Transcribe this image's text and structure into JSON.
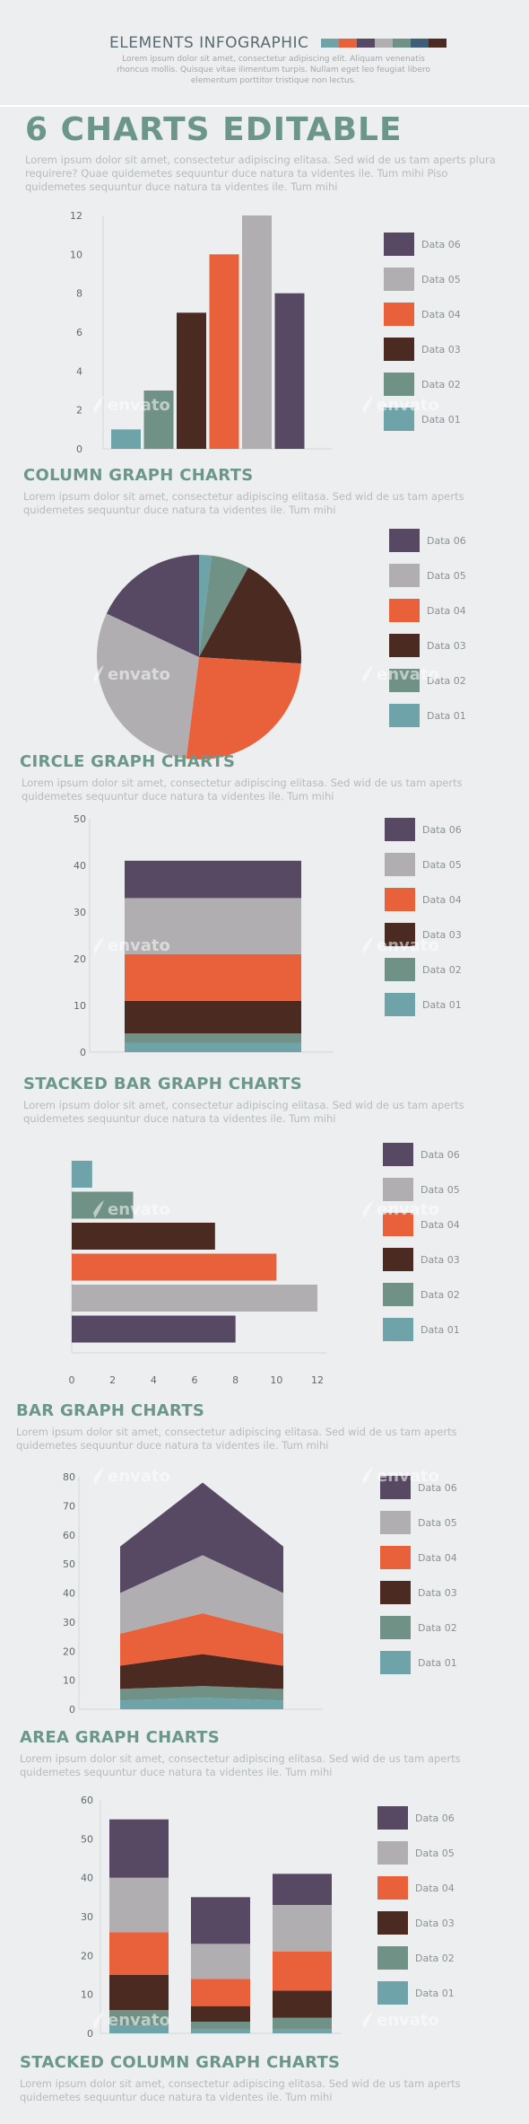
{
  "header": {
    "title": "ELEMENTS INFOGRAPHIC",
    "subtitle": "Lorem ipsum dolor sit amet, consectetur adipiscing elit. Aliquam venenatis rhoncus mollis. Quisque vitae ilimentum turpis. Nullam eget leo feugiat libero elementum porttitor tristique non lectus.",
    "strip_colors": [
      "#6ea3a9",
      "#e8613a",
      "#574963",
      "#b0aeb0",
      "#6f9186",
      "#3e5f7a",
      "#4b2a22"
    ]
  },
  "main": {
    "title": "6 CHARTS EDITABLE",
    "intro": "Lorem ipsum dolor sit amet, consectetur adipiscing elitasa. Sed wid de us tam aperts plura requirere? Quae quidemetes sequuntur duce natura ta videntes ile. Tum mihi Piso quidemetes sequuntur duce natura ta videntes ile. Tum mihi"
  },
  "watermark": "envato",
  "colors": {
    "Data 06": "#574963",
    "Data 05": "#b0aeb0",
    "Data 04": "#e8613a",
    "Data 03": "#4b2a22",
    "Data 02": "#6f9186",
    "Data 01": "#6ea3a9"
  },
  "legend": [
    "Data 06",
    "Data 05",
    "Data 04",
    "Data 03",
    "Data 02",
    "Data 01"
  ],
  "sections": [
    {
      "title": "COLUMN GRAPH CHARTS",
      "desc": "Lorem ipsum dolor sit amet, consectetur adipiscing elitasa. Sed wid de us tam aperts quidemetes sequuntur duce natura ta videntes ile. Tum mihi"
    },
    {
      "title": "CIRCLE GRAPH CHARTS",
      "desc": "Lorem ipsum dolor sit amet, consectetur adipiscing elitasa. Sed wid de us tam aperts quidemetes sequuntur duce natura ta videntes ile. Tum mihi"
    },
    {
      "title": "STACKED BAR GRAPH CHARTS",
      "desc": "Lorem ipsum dolor sit amet, consectetur adipiscing elitasa. Sed wid de us tam aperts quidemetes sequuntur duce natura ta videntes ile. Tum mihi"
    },
    {
      "title": "BAR GRAPH CHARTS",
      "desc": "Lorem ipsum dolor sit amet, consectetur adipiscing elitasa. Sed wid de us tam aperts quidemetes sequuntur duce natura ta videntes ile. Tum mihi"
    },
    {
      "title": "AREA GRAPH CHARTS",
      "desc": "Lorem ipsum dolor sit amet, consectetur adipiscing elitasa. Sed wid de us tam aperts quidemetes sequuntur duce natura ta videntes ile. Tum mihi"
    },
    {
      "title": "STACKED COLUMN GRAPH CHARTS",
      "desc": "Lorem ipsum dolor sit amet, consectetur adipiscing elitasa. Sed wid de us tam aperts quidemetes sequuntur duce natura ta videntes ile. Tum mihi"
    }
  ],
  "chart_data": [
    {
      "type": "bar",
      "categories": [
        "Data 01",
        "Data 02",
        "Data 03",
        "Data 04",
        "Data 05",
        "Data 06"
      ],
      "values": [
        1,
        3,
        7,
        10,
        12,
        8
      ],
      "ylim": [
        0,
        12
      ],
      "yticks": [
        0,
        2,
        4,
        6,
        8,
        10,
        12
      ],
      "grid": false,
      "legend": "right"
    },
    {
      "type": "pie",
      "categories": [
        "Data 01",
        "Data 02",
        "Data 03",
        "Data 04",
        "Data 05",
        "Data 06"
      ],
      "values": [
        2,
        6,
        18,
        26,
        30,
        18
      ],
      "legend": "right"
    },
    {
      "type": "bar",
      "orientation": "stacked-vertical",
      "categories": [
        "Data 01",
        "Data 02",
        "Data 03",
        "Data 04",
        "Data 05",
        "Data 06"
      ],
      "values": [
        2,
        2,
        7,
        10,
        12,
        8
      ],
      "ylim": [
        0,
        50
      ],
      "yticks": [
        0,
        10,
        20,
        30,
        40,
        50
      ],
      "grid": false,
      "legend": "right"
    },
    {
      "type": "bar",
      "orientation": "horizontal",
      "categories": [
        "Data 01",
        "Data 02",
        "Data 03",
        "Data 04",
        "Data 05",
        "Data 06"
      ],
      "values": [
        1,
        3,
        7,
        10,
        12,
        8
      ],
      "xlim": [
        0,
        12
      ],
      "xticks": [
        0,
        2,
        4,
        6,
        8,
        10,
        12
      ],
      "grid": false,
      "legend": "right"
    },
    {
      "type": "area",
      "x": [
        1,
        2,
        3
      ],
      "series": [
        {
          "name": "Data 01",
          "values": [
            3,
            4,
            3
          ]
        },
        {
          "name": "Data 02",
          "values": [
            4,
            4,
            4
          ]
        },
        {
          "name": "Data 03",
          "values": [
            8,
            11,
            8
          ]
        },
        {
          "name": "Data 04",
          "values": [
            11,
            14,
            11
          ]
        },
        {
          "name": "Data 05",
          "values": [
            14,
            20,
            14
          ]
        },
        {
          "name": "Data 06",
          "values": [
            16,
            25,
            16
          ]
        }
      ],
      "ylim": [
        0,
        80
      ],
      "yticks": [
        0,
        10,
        20,
        30,
        40,
        50,
        60,
        70,
        80
      ],
      "grid": false,
      "legend": "right"
    },
    {
      "type": "bar",
      "orientation": "stacked-columns",
      "x": [
        "1",
        "2",
        "3"
      ],
      "series": [
        {
          "name": "Data 01",
          "values": [
            2,
            1,
            1
          ]
        },
        {
          "name": "Data 02",
          "values": [
            4,
            2,
            3
          ]
        },
        {
          "name": "Data 03",
          "values": [
            9,
            4,
            7
          ]
        },
        {
          "name": "Data 04",
          "values": [
            11,
            7,
            10
          ]
        },
        {
          "name": "Data 05",
          "values": [
            14,
            9,
            12
          ]
        },
        {
          "name": "Data 06",
          "values": [
            15,
            12,
            8
          ]
        }
      ],
      "ylim": [
        0,
        60
      ],
      "yticks": [
        0,
        10,
        20,
        30,
        40,
        50,
        60
      ],
      "grid": false,
      "legend": "right"
    }
  ]
}
